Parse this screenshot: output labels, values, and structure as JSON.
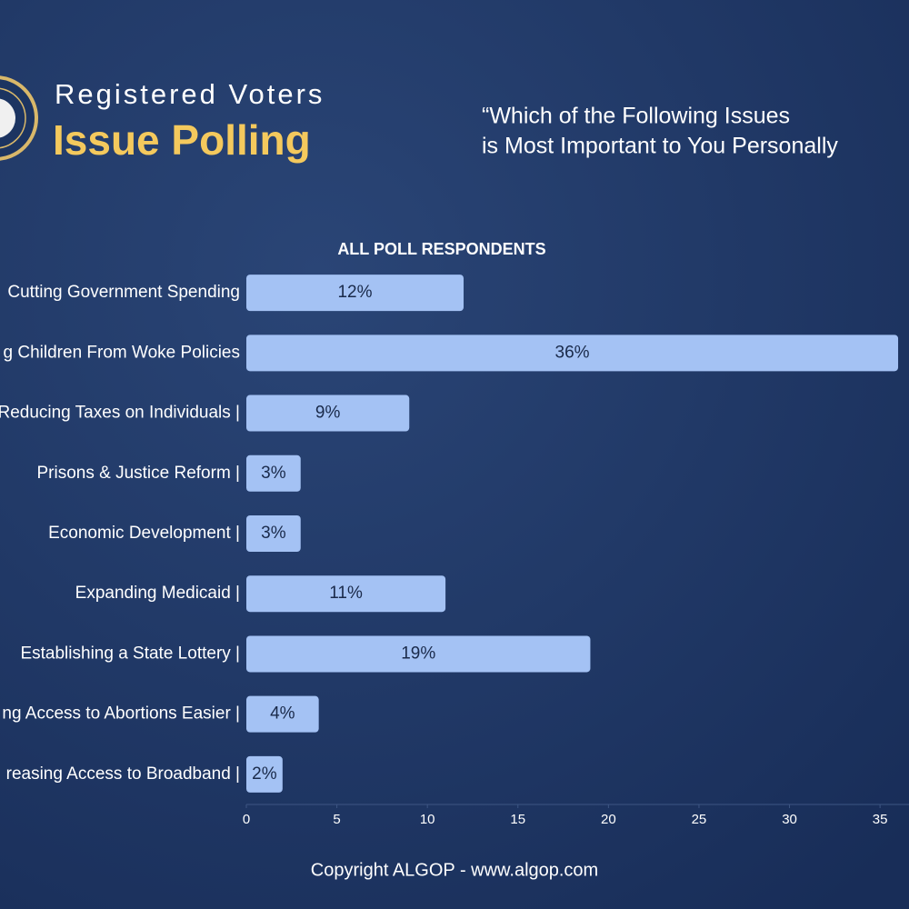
{
  "chart_data": {
    "type": "bar",
    "orientation": "horizontal",
    "title": "Registered Voters",
    "subtitle": "Issue Polling",
    "question": [
      "“Which of the Following Issues",
      "is Most Important to You Personally"
    ],
    "chart_title": "ALL POLL RESPONDENTS",
    "categories": [
      "Cutting Government Spending",
      "g Children From Woke Policies",
      "Reducing Taxes on Individuals |",
      "Prisons & Justice Reform |",
      "Economic Development |",
      "Expanding Medicaid |",
      "Establishing a State Lottery |",
      "ng Access to Abortions Easier |",
      "reasing Access to Broadband |"
    ],
    "values": [
      12,
      36,
      9,
      3,
      3,
      11,
      19,
      4,
      2
    ],
    "value_labels": [
      "12%",
      "36%",
      "9%",
      "3%",
      "3%",
      "11%",
      "19%",
      "4%",
      "2%"
    ],
    "color": "#a4c2f4",
    "xlim": [
      0,
      36.5
    ],
    "xticks": [
      0,
      5,
      10,
      15,
      20,
      25,
      30,
      35
    ],
    "footer": "Copyright ALGOP -  www.algop.com"
  }
}
